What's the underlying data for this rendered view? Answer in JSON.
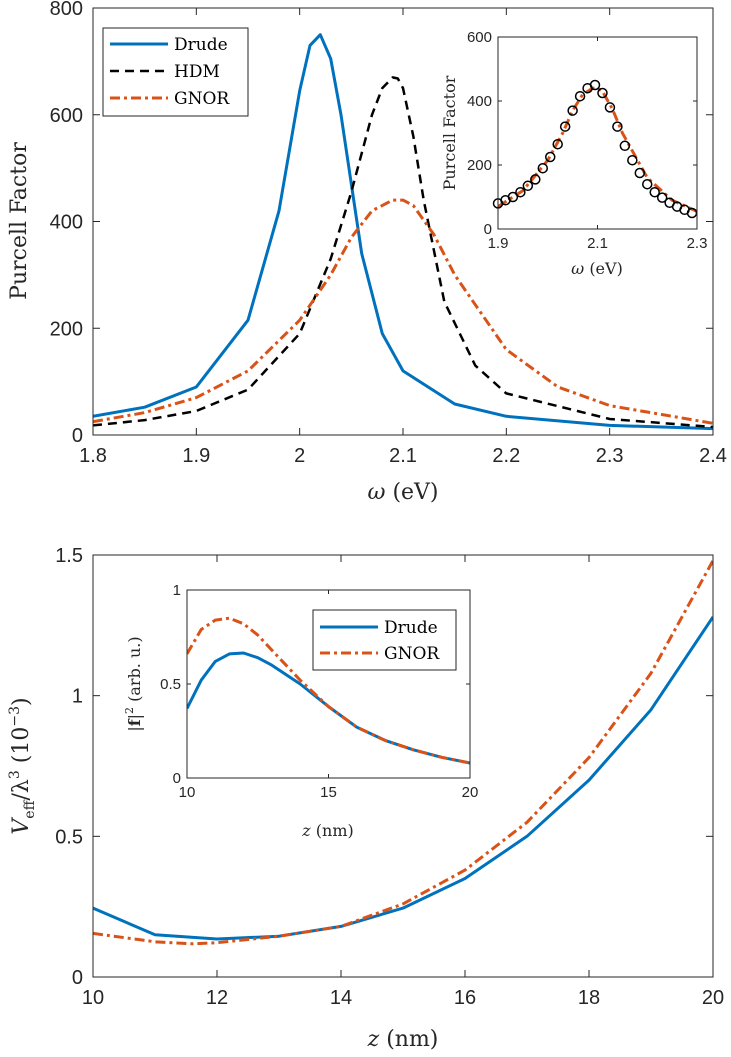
{
  "chart_data": [
    {
      "type": "line",
      "name": "top-main",
      "xlim": [
        1.8,
        2.4
      ],
      "ylim": [
        0,
        800
      ],
      "xticks": [
        "1.8",
        "1.9",
        "2",
        "2.1",
        "2.2",
        "2.3",
        "2.4"
      ],
      "yticks": [
        "0",
        "200",
        "400",
        "600",
        "800"
      ],
      "xlabel_sym": "ω",
      "xlabel_unit": "(eV)",
      "ylabel": "Purcell Factor",
      "legend_position": "top-left",
      "series": [
        {
          "name": "Drude",
          "color": "#0072BD",
          "style": "solid",
          "x": [
            1.8,
            1.85,
            1.9,
            1.95,
            1.98,
            2.0,
            2.01,
            2.02,
            2.03,
            2.04,
            2.06,
            2.08,
            2.1,
            2.15,
            2.2,
            2.3,
            2.4
          ],
          "y": [
            35,
            52,
            90,
            215,
            420,
            645,
            730,
            750,
            705,
            600,
            340,
            190,
            120,
            58,
            35,
            18,
            12
          ]
        },
        {
          "name": "HDM",
          "color": "#000000",
          "style": "dashed",
          "x": [
            1.8,
            1.85,
            1.9,
            1.95,
            2.0,
            2.03,
            2.05,
            2.07,
            2.08,
            2.09,
            2.095,
            2.1,
            2.11,
            2.12,
            2.14,
            2.17,
            2.2,
            2.3,
            2.4
          ],
          "y": [
            18,
            28,
            45,
            85,
            190,
            330,
            455,
            600,
            650,
            670,
            668,
            650,
            560,
            440,
            250,
            130,
            78,
            30,
            15
          ]
        },
        {
          "name": "GNOR",
          "color": "#D95319",
          "style": "dashdot",
          "x": [
            1.8,
            1.85,
            1.9,
            1.95,
            2.0,
            2.03,
            2.05,
            2.07,
            2.09,
            2.1,
            2.11,
            2.13,
            2.15,
            2.2,
            2.25,
            2.3,
            2.4
          ],
          "y": [
            25,
            42,
            70,
            120,
            215,
            300,
            370,
            420,
            440,
            440,
            430,
            375,
            300,
            160,
            90,
            55,
            22
          ]
        }
      ]
    },
    {
      "type": "line",
      "name": "top-inset",
      "xlim": [
        1.9,
        2.3
      ],
      "ylim": [
        0,
        600
      ],
      "xticks": [
        "1.9",
        "2.1",
        "2.3"
      ],
      "yticks": [
        "0",
        "200",
        "400",
        "600"
      ],
      "xlabel_sym": "ω",
      "xlabel_unit": "(eV)",
      "ylabel": "Purcell Factor",
      "series": [
        {
          "name": "GNOR",
          "color": "#D95319",
          "style": "dashdot",
          "x": [
            1.9,
            1.95,
            2.0,
            2.03,
            2.05,
            2.07,
            2.09,
            2.1,
            2.11,
            2.13,
            2.15,
            2.2,
            2.25,
            2.3
          ],
          "y": [
            70,
            120,
            215,
            300,
            370,
            420,
            440,
            440,
            430,
            375,
            300,
            160,
            90,
            55
          ]
        },
        {
          "name": "data",
          "color": "#000000",
          "style": "markers",
          "x": [
            1.9,
            1.915,
            1.93,
            1.945,
            1.96,
            1.975,
            1.99,
            2.005,
            2.02,
            2.035,
            2.05,
            2.065,
            2.08,
            2.095,
            2.11,
            2.125,
            2.14,
            2.155,
            2.17,
            2.185,
            2.2,
            2.215,
            2.23,
            2.245,
            2.26,
            2.275,
            2.29
          ],
          "y": [
            80,
            90,
            100,
            115,
            135,
            155,
            190,
            225,
            265,
            320,
            370,
            415,
            440,
            450,
            425,
            380,
            320,
            260,
            215,
            175,
            140,
            115,
            98,
            82,
            70,
            60,
            50
          ]
        }
      ]
    },
    {
      "type": "line",
      "name": "bottom-main",
      "xlim": [
        10,
        20
      ],
      "ylim": [
        0,
        1.5
      ],
      "xticks": [
        "10",
        "12",
        "14",
        "16",
        "18",
        "20"
      ],
      "yticks": [
        "0",
        "0.5",
        "1",
        "1.5"
      ],
      "xlabel_sym": "z",
      "xlabel_unit": "(nm)",
      "ylabel": "V_eff / λ^3 (10^-3)",
      "series": [
        {
          "name": "Drude",
          "color": "#0072BD",
          "style": "solid",
          "x": [
            10,
            11,
            12,
            13,
            14,
            15,
            16,
            17,
            18,
            19,
            20
          ],
          "y": [
            0.245,
            0.15,
            0.135,
            0.145,
            0.18,
            0.245,
            0.35,
            0.5,
            0.7,
            0.95,
            1.28
          ]
        },
        {
          "name": "GNOR",
          "color": "#D95319",
          "style": "dashdot",
          "x": [
            10,
            11,
            11.6,
            12,
            13,
            14,
            15,
            16,
            17,
            18,
            19,
            20
          ],
          "y": [
            0.155,
            0.125,
            0.118,
            0.122,
            0.145,
            0.18,
            0.26,
            0.38,
            0.55,
            0.78,
            1.08,
            1.48
          ]
        }
      ]
    },
    {
      "type": "line",
      "name": "bottom-inset",
      "xlim": [
        10,
        20
      ],
      "ylim": [
        0,
        1
      ],
      "xticks": [
        "10",
        "15",
        "20"
      ],
      "yticks": [
        "0",
        "0.5",
        "1"
      ],
      "xlabel_sym": "z",
      "xlabel_unit": "(nm)",
      "ylabel": "|f|^2 (arb. u.)",
      "legend_position": "top-right",
      "series": [
        {
          "name": "Drude",
          "color": "#0072BD",
          "style": "solid",
          "x": [
            10,
            10.5,
            11,
            11.5,
            12,
            12.5,
            13,
            14,
            15,
            16,
            17,
            18,
            19,
            20
          ],
          "y": [
            0.37,
            0.52,
            0.62,
            0.66,
            0.665,
            0.64,
            0.6,
            0.5,
            0.38,
            0.27,
            0.2,
            0.15,
            0.11,
            0.08
          ]
        },
        {
          "name": "GNOR",
          "color": "#D95319",
          "style": "dashdot",
          "x": [
            10,
            10.5,
            11,
            11.5,
            12,
            12.5,
            13,
            14,
            15,
            16,
            17,
            18,
            19,
            20
          ],
          "y": [
            0.66,
            0.79,
            0.84,
            0.85,
            0.82,
            0.76,
            0.68,
            0.52,
            0.38,
            0.27,
            0.2,
            0.15,
            0.11,
            0.08
          ]
        }
      ]
    }
  ],
  "ylabel_top": "Purcell Factor",
  "labels": {
    "eV": "(eV)",
    "nm": "(nm)",
    "omega": "ω",
    "z": "z",
    "veff_V": "V",
    "veff_sub": "eff",
    "veff_lambda": "/λ",
    "veff_exp": "3",
    "veff_unit_open": "(10",
    "veff_unit_exp": "−3",
    "veff_unit_close": ")",
    "f_bar1": "|",
    "f_bold": "f",
    "f_bar2": "|",
    "f_exp": "2",
    "f_unit": "(arb. u.)"
  },
  "legends": {
    "top": [
      "Drude",
      "HDM",
      "GNOR"
    ],
    "bottom": [
      "Drude",
      "GNOR"
    ]
  }
}
